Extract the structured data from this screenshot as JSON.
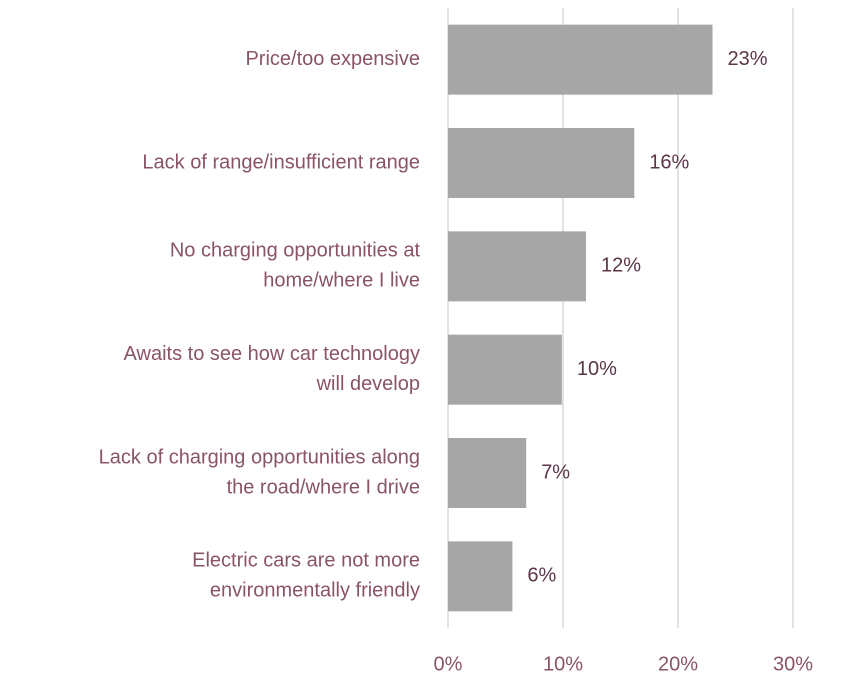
{
  "chart_data": {
    "type": "barh",
    "categories": [
      [
        "Price/too expensive"
      ],
      [
        "Lack of range/insufficient range"
      ],
      [
        "No charging opportunities at",
        "home/where I live"
      ],
      [
        "Awaits to see how car technology",
        "will develop"
      ],
      [
        "Lack of charging opportunities along",
        "the road/where I drive"
      ],
      [
        "Electric cars are not more",
        "environmentally friendly"
      ]
    ],
    "values": [
      23,
      16.2,
      12,
      9.9,
      6.8,
      5.6
    ],
    "value_labels": [
      "23%",
      "16%",
      "12%",
      "10%",
      "7%",
      "6%"
    ],
    "color": "#a6a6a6",
    "xlim": [
      0,
      32
    ],
    "xticks": [
      {
        "value": 0,
        "label": "0%"
      },
      {
        "value": 10,
        "label": "10%"
      },
      {
        "value": 20,
        "label": "20%"
      },
      {
        "value": 30,
        "label": "30%"
      }
    ],
    "grid": true
  }
}
